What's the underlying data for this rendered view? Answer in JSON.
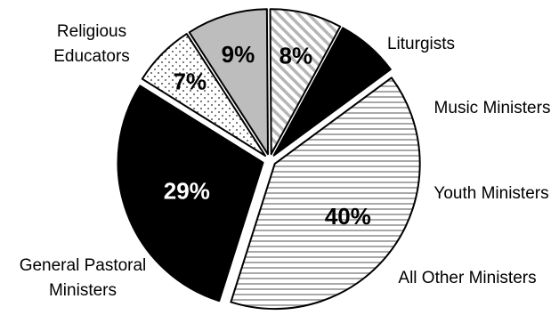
{
  "chart_data": {
    "type": "pie",
    "title": "",
    "slices": [
      {
        "name": "Liturgists",
        "label_lines": [
          "Liturgists"
        ],
        "value": 7,
        "value_label": "7%",
        "fill": "dots",
        "label_color": "#000000"
      },
      {
        "name": "Music Ministers",
        "label_lines": [
          "Music Ministers"
        ],
        "value": 9,
        "value_label": "9%",
        "fill": "#bdbdbd",
        "label_color": "#000000"
      },
      {
        "name": "Youth Ministers",
        "label_lines": [
          "Youth Ministers"
        ],
        "value": 8,
        "value_label": "8%",
        "fill": "diagonal-stripes",
        "label_color": "#000000"
      },
      {
        "name": "All Other Ministers",
        "label_lines": [
          "All Other Ministers"
        ],
        "value": 7,
        "value_label": "",
        "fill": "#000000",
        "label_color": "#ffffff"
      },
      {
        "name": "General Pastoral Ministers",
        "label_lines": [
          "General Pastoral",
          "Ministers"
        ],
        "value": 40,
        "value_label": "40%",
        "fill": "horizontal-stripes",
        "label_color": "#000000"
      },
      {
        "name": "Religious Educators",
        "label_lines": [
          "Religious",
          "Educators"
        ],
        "value": 29,
        "value_label": "29%",
        "fill": "#000000",
        "label_color": "#ffffff"
      }
    ]
  }
}
